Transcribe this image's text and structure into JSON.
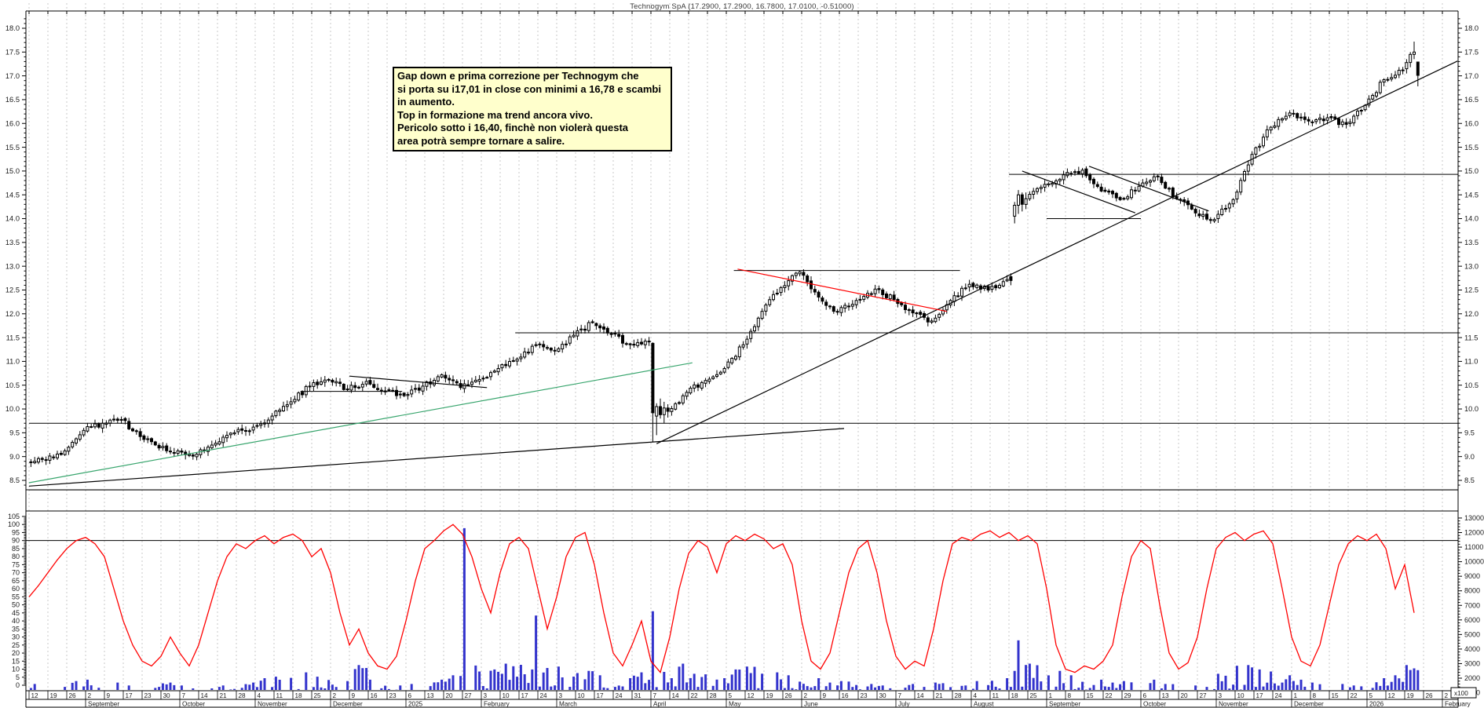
{
  "title": "Technogym SpA (17.2900, 17.2900, 16.7800, 17.0100, -0.51000)",
  "annotation": {
    "lines": [
      "Gap down e prima correzione per Technogym che",
      "si porta su i17,01 in close con minimi a 16,78 e scambi",
      "in aumento.",
      "Top in formazione ma trend ancora vivo.",
      "Pericolo sotto i 16,40, finchè non violerà questa",
      "area potrà sempre tornare a salire."
    ]
  },
  "colors": {
    "background": "#ffffff",
    "grid": "#c9c9c9",
    "axis_text": "#1a1a1a",
    "candle_outline": "#000000",
    "candle_up_fill": "#ffffff",
    "candle_down_fill": "#000000",
    "volume_bar": "#3333cc",
    "oscillator_line": "#ff0000",
    "trendline_green": "#38a56d",
    "trendline_red": "#ff0000",
    "trendline_black": "#000000",
    "annotation_bg": "#ffffcc",
    "annotation_border": "#000000"
  },
  "price_axis": {
    "side": "both",
    "min": 8.5,
    "max": 18.0,
    "step": 0.5,
    "minor_step": 0.1
  },
  "oscillator_axis": {
    "side": "left",
    "min": 0,
    "max": 105,
    "step": 5,
    "reference_line": 90
  },
  "volume_axis": {
    "side": "right",
    "min": 1000,
    "max": 13000,
    "step": 1000,
    "multiplier_label": "x100"
  },
  "x_axis": {
    "weeks": [
      "12",
      "19",
      "26",
      "2",
      "9",
      "17",
      "23",
      "30",
      "7",
      "14",
      "21",
      "28",
      "4",
      "11",
      "18",
      "25",
      "2",
      "9",
      "16",
      "23",
      "6",
      "13",
      "20",
      "27",
      "3",
      "10",
      "17",
      "24",
      "3",
      "10",
      "17",
      "24",
      "31",
      "7",
      "14",
      "22",
      "28",
      "5",
      "12",
      "19",
      "26",
      "2",
      "9",
      "16",
      "23",
      "30",
      "7",
      "14",
      "21",
      "28",
      "4",
      "11",
      "18",
      "25",
      "1",
      "8",
      "15",
      "22",
      "29",
      "6",
      "13",
      "20",
      "27",
      "3",
      "10",
      "17",
      "24",
      "1",
      "8",
      "15",
      "22",
      "5",
      "12",
      "19",
      "26",
      "2"
    ],
    "months": [
      {
        "label": "September",
        "week": 3
      },
      {
        "label": "October",
        "week": 8
      },
      {
        "label": "November",
        "week": 12
      },
      {
        "label": "December",
        "week": 16
      },
      {
        "label": "2025",
        "week": 20
      },
      {
        "label": "February",
        "week": 24
      },
      {
        "label": "March",
        "week": 28
      },
      {
        "label": "April",
        "week": 33
      },
      {
        "label": "May",
        "week": 37
      },
      {
        "label": "June",
        "week": 41
      },
      {
        "label": "July",
        "week": 46
      },
      {
        "label": "August",
        "week": 50
      },
      {
        "label": "September",
        "week": 54
      },
      {
        "label": "October",
        "week": 59
      },
      {
        "label": "November",
        "week": 63
      },
      {
        "label": "December",
        "week": 67
      },
      {
        "label": "2026",
        "week": 71
      },
      {
        "label": "February",
        "week": 75
      }
    ]
  },
  "chart_data": {
    "type": "candlestick",
    "panels": [
      "price",
      "oscillator+volume"
    ],
    "last_quote": {
      "open": 17.29,
      "high": 17.29,
      "low": 16.78,
      "close": 17.01,
      "change": -0.51
    },
    "weekly": [
      {
        "c": 8.92,
        "v": 1600
      },
      {
        "c": 9.12,
        "v": 1400
      },
      {
        "c": 9.55,
        "v": 1800
      },
      {
        "c": 9.7,
        "v": 1900
      },
      {
        "c": 9.78,
        "v": 1700
      },
      {
        "c": 9.42,
        "v": 1500
      },
      {
        "c": 9.18,
        "v": 1400
      },
      {
        "c": 9.12,
        "v": 1700
      },
      {
        "c": 9.05,
        "v": 1500
      },
      {
        "c": 9.28,
        "v": 1300
      },
      {
        "c": 9.5,
        "v": 1500
      },
      {
        "c": 9.62,
        "v": 1700
      },
      {
        "c": 9.85,
        "v": 2000
      },
      {
        "c": 10.15,
        "v": 2100
      },
      {
        "c": 10.48,
        "v": 2400
      },
      {
        "c": 10.62,
        "v": 2100
      },
      {
        "c": 10.42,
        "v": 1800
      },
      {
        "c": 10.58,
        "v": 2900
      },
      {
        "c": 10.38,
        "v": 1900
      },
      {
        "c": 10.28,
        "v": 1500
      },
      {
        "c": 10.48,
        "v": 1600
      },
      {
        "c": 10.72,
        "v": 1900
      },
      {
        "c": 10.45,
        "v": 2200
      },
      {
        "c": 10.62,
        "v": 12300
      },
      {
        "c": 10.85,
        "v": 2600
      },
      {
        "c": 11.05,
        "v": 3000
      },
      {
        "c": 11.35,
        "v": 6300
      },
      {
        "c": 11.22,
        "v": 2700
      },
      {
        "c": 11.55,
        "v": 2800
      },
      {
        "c": 11.82,
        "v": 2500
      },
      {
        "c": 11.58,
        "v": 2200
      },
      {
        "c": 11.35,
        "v": 2000
      },
      {
        "c": 11.42,
        "v": 2400
      },
      {
        "c": 9.95,
        "v": 6600
      },
      {
        "c": 10.35,
        "v": 3000
      },
      {
        "c": 10.6,
        "v": 2300
      },
      {
        "c": 10.85,
        "v": 2000
      },
      {
        "c": 11.35,
        "v": 2600
      },
      {
        "c": 12.05,
        "v": 2800
      },
      {
        "c": 12.55,
        "v": 2400
      },
      {
        "c": 12.88,
        "v": 2200
      },
      {
        "c": 12.35,
        "v": 2000
      },
      {
        "c": 12.05,
        "v": 1700
      },
      {
        "c": 12.28,
        "v": 1800
      },
      {
        "c": 12.52,
        "v": 1600
      },
      {
        "c": 12.3,
        "v": 1500
      },
      {
        "c": 12.02,
        "v": 1600
      },
      {
        "c": 11.85,
        "v": 1400
      },
      {
        "c": 12.28,
        "v": 1700
      },
      {
        "c": 12.62,
        "v": 1500
      },
      {
        "c": 12.5,
        "v": 1800
      },
      {
        "c": 12.72,
        "v": 2000
      },
      {
        "c": 14.42,
        "v": 4600
      },
      {
        "c": 14.72,
        "v": 3000
      },
      {
        "c": 14.92,
        "v": 2500
      },
      {
        "c": 15.02,
        "v": 2200
      },
      {
        "c": 14.58,
        "v": 1900
      },
      {
        "c": 14.4,
        "v": 1700
      },
      {
        "c": 14.68,
        "v": 1800
      },
      {
        "c": 14.88,
        "v": 1900
      },
      {
        "c": 14.42,
        "v": 1600
      },
      {
        "c": 14.12,
        "v": 1500
      },
      {
        "c": 13.98,
        "v": 1400
      },
      {
        "c": 14.4,
        "v": 2300
      },
      {
        "c": 15.35,
        "v": 2900
      },
      {
        "c": 15.92,
        "v": 2600
      },
      {
        "c": 16.22,
        "v": 2200
      },
      {
        "c": 16.05,
        "v": 1900
      },
      {
        "c": 16.12,
        "v": 1700
      },
      {
        "c": 15.98,
        "v": 1600
      },
      {
        "c": 16.38,
        "v": 1500
      },
      {
        "c": 16.92,
        "v": 2000
      },
      {
        "c": 17.12,
        "v": 2200
      },
      {
        "c": 17.3,
        "v": 2900
      }
    ],
    "explicit_weeks": {
      "33": [
        {
          "o": 11.38,
          "h": 11.4,
          "l": 9.3,
          "c": 9.92
        },
        {
          "o": 9.85,
          "h": 10.12,
          "l": 9.45,
          "c": 10.05
        },
        {
          "o": 10.05,
          "h": 10.22,
          "l": 9.8,
          "c": 9.88
        },
        {
          "o": 9.88,
          "h": 10.15,
          "l": 9.7,
          "c": 10.02
        },
        {
          "o": 10.02,
          "h": 10.1,
          "l": 9.82,
          "c": 9.95
        }
      ],
      "52": [
        {
          "o": 12.78,
          "h": 12.85,
          "l": 12.6,
          "c": 12.7
        },
        {
          "o": 14.05,
          "h": 14.35,
          "l": 13.9,
          "c": 14.28
        },
        {
          "o": 14.28,
          "h": 14.6,
          "l": 14.1,
          "c": 14.5
        },
        {
          "o": 14.5,
          "h": 14.55,
          "l": 14.15,
          "c": 14.3
        },
        {
          "o": 14.3,
          "h": 14.55,
          "l": 14.2,
          "c": 14.42
        }
      ],
      "73": [
        {
          "o": 17.15,
          "h": 17.35,
          "l": 17.05,
          "c": 17.28
        },
        {
          "o": 17.28,
          "h": 17.5,
          "l": 17.18,
          "c": 17.45
        },
        {
          "o": 17.45,
          "h": 17.72,
          "l": 17.35,
          "c": 17.5
        },
        {
          "o": 17.29,
          "h": 17.29,
          "l": 16.78,
          "c": 17.01
        }
      ]
    },
    "oscillator": [
      55,
      62,
      70,
      78,
      85,
      90,
      92,
      88,
      80,
      60,
      40,
      25,
      15,
      12,
      18,
      30,
      20,
      12,
      25,
      45,
      65,
      80,
      88,
      85,
      90,
      93,
      88,
      92,
      94,
      90,
      80,
      85,
      70,
      45,
      25,
      35,
      20,
      12,
      10,
      18,
      40,
      65,
      85,
      90,
      96,
      100,
      94,
      80,
      60,
      45,
      70,
      88,
      92,
      85,
      60,
      35,
      55,
      80,
      92,
      95,
      75,
      45,
      20,
      12,
      25,
      40,
      15,
      8,
      30,
      60,
      82,
      90,
      86,
      70,
      88,
      93,
      90,
      94,
      91,
      85,
      88,
      75,
      40,
      15,
      10,
      20,
      45,
      70,
      85,
      90,
      70,
      40,
      18,
      10,
      15,
      12,
      35,
      65,
      88,
      92,
      90,
      94,
      96,
      92,
      95,
      90,
      93,
      88,
      60,
      25,
      10,
      8,
      12,
      10,
      15,
      25,
      55,
      80,
      90,
      85,
      50,
      20,
      10,
      14,
      30,
      60,
      85,
      92,
      95,
      90,
      94,
      96,
      88,
      60,
      30,
      15,
      12,
      25,
      50,
      75,
      88,
      93,
      90,
      94,
      85,
      60,
      75,
      45
    ],
    "hlines": [
      {
        "w1": 0,
        "w2": 76,
        "price": 9.7
      },
      {
        "w1": 25.8,
        "w2": 76,
        "price": 11.6
      },
      {
        "w1": 52.0,
        "w2": 76,
        "price": 14.93
      },
      {
        "w1": 0,
        "w2": 76,
        "price": 8.3
      },
      {
        "w1": 14.4,
        "w2": 19.8,
        "price": 10.37
      },
      {
        "w1": 37.4,
        "w2": 49.4,
        "price": 12.91
      },
      {
        "w1": 54.0,
        "w2": 59.0,
        "price": 14.0
      }
    ],
    "trendlines": [
      {
        "w1": 0,
        "p1": 8.45,
        "w2": 35.2,
        "p2": 10.97,
        "color": "green"
      },
      {
        "w1": 0,
        "p1": 8.38,
        "w2": 43.25,
        "p2": 9.59,
        "color": "black"
      },
      {
        "w1": 33.3,
        "p1": 9.27,
        "w2": 75.8,
        "p2": 17.31,
        "color": "black"
      },
      {
        "w1": 37.6,
        "p1": 12.94,
        "w2": 48.7,
        "p2": 12.05,
        "color": "red"
      },
      {
        "w1": 17.0,
        "p1": 10.69,
        "w2": 24.3,
        "p2": 10.45,
        "color": "black"
      },
      {
        "w1": 52.7,
        "p1": 15.0,
        "w2": 58.7,
        "p2": 14.12,
        "color": "black"
      },
      {
        "w1": 56.25,
        "p1": 15.1,
        "w2": 62.6,
        "p2": 14.16,
        "color": "black"
      }
    ]
  }
}
